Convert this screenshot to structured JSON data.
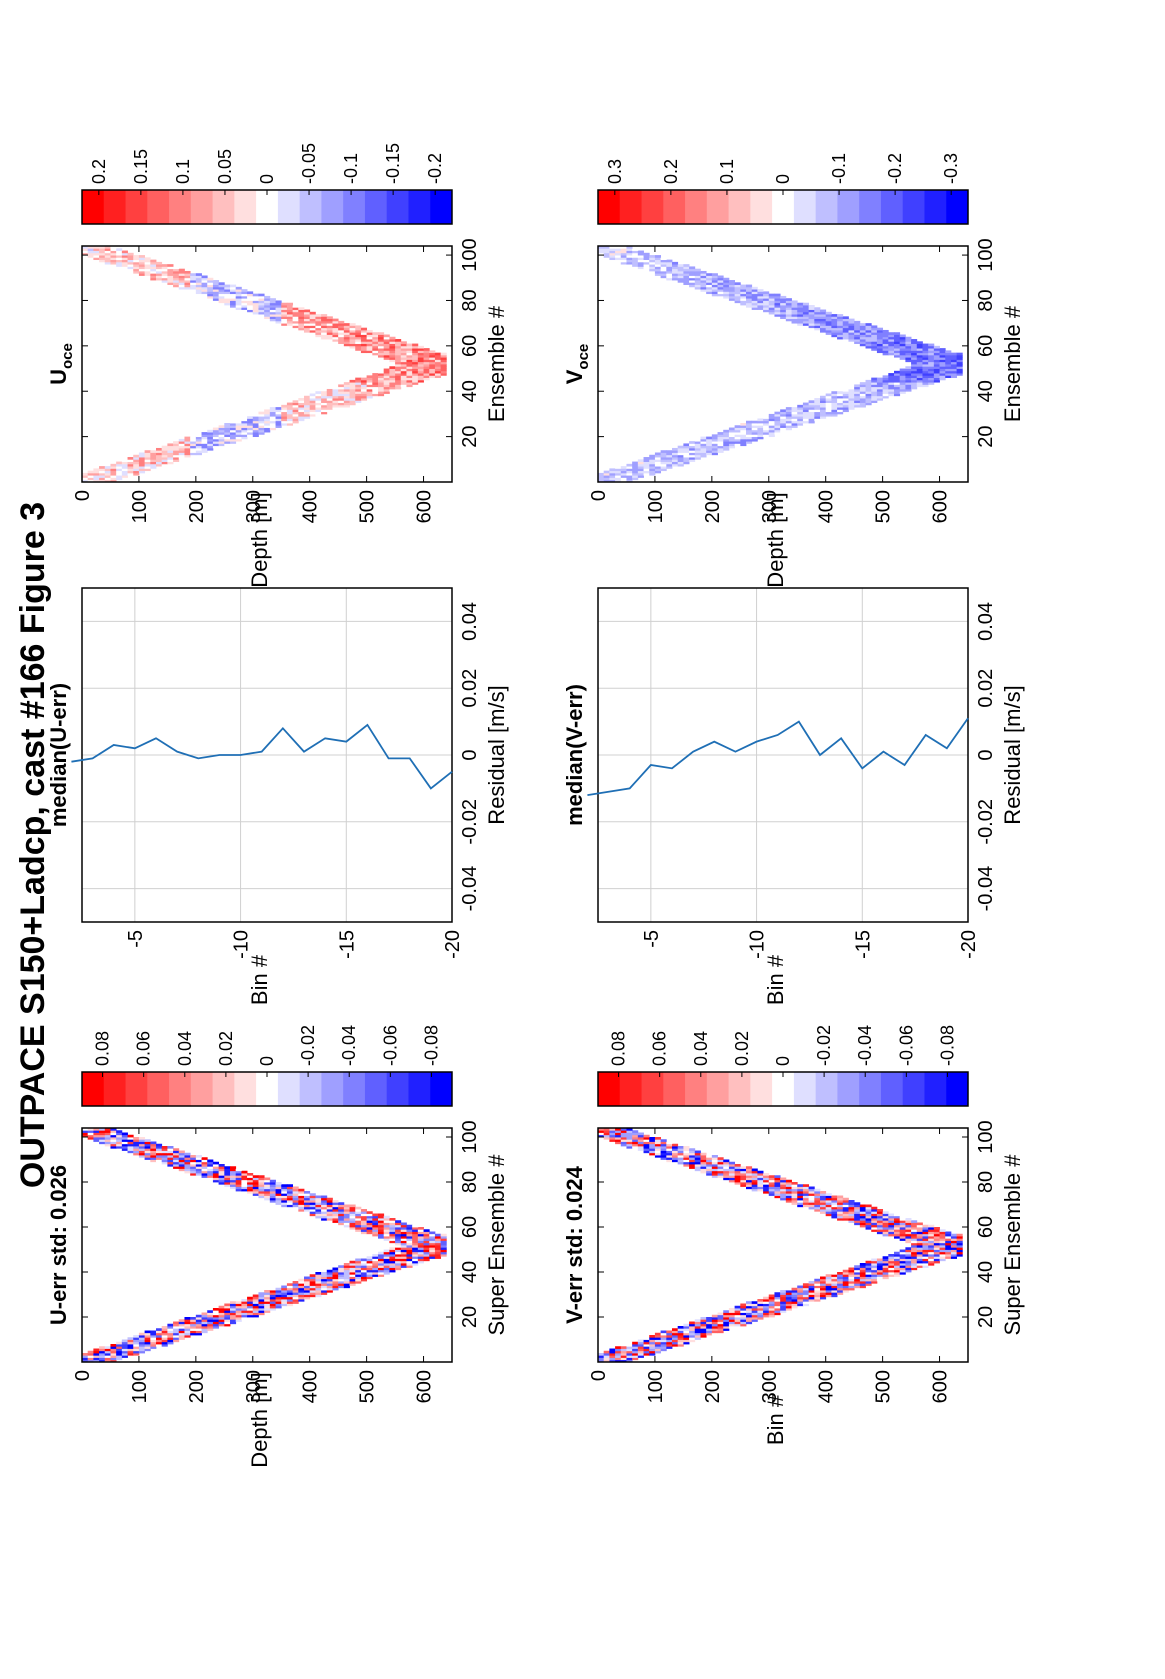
{
  "figure": {
    "title": "OUTPACE S150+Ladcp, cast #166  Figure 3"
  },
  "colors": {
    "red": "#ff0000",
    "blue": "#0000ff",
    "line": "#1f6fb5",
    "grid": "#d0d0d0"
  },
  "chart_data": [
    {
      "id": "u_err",
      "type": "heatmap",
      "title": "U-err std: 0.026",
      "xlabel": "Super Ensemble #",
      "ylabel": "Depth [m]",
      "xticks": [
        "20",
        "40",
        "60",
        "80",
        "100"
      ],
      "yticks": [
        "0",
        "100",
        "200",
        "300",
        "400",
        "500",
        "600"
      ],
      "xlim": [
        0,
        104
      ],
      "ylim": [
        0,
        650
      ],
      "colorbar": {
        "range": [
          -0.09,
          0.09
        ],
        "ticks": [
          "0.08",
          "0.06",
          "0.04",
          "0.02",
          "0",
          "-0.02",
          "-0.04",
          "-0.06",
          "-0.08"
        ]
      },
      "seed": 11,
      "bias": 0,
      "noise": 1.0
    },
    {
      "id": "u_median",
      "type": "line",
      "title": "median(U-err)",
      "xlabel": "Residual [m/s]",
      "ylabel": "Bin #",
      "xticks": [
        "-0.04",
        "-0.02",
        "0",
        "0.02",
        "0.04"
      ],
      "yticks": [
        "-5",
        "-10",
        "-15",
        "-20"
      ],
      "xlim": [
        -0.05,
        0.05
      ],
      "ylim": [
        -20,
        -2.5
      ],
      "x": [
        -0.002,
        -0.001,
        0.003,
        0.002,
        0.005,
        0.001,
        -0.001,
        0.0,
        0.0,
        0.001,
        0.008,
        0.001,
        0.005,
        0.004,
        0.009,
        -0.001,
        -0.001,
        -0.01,
        -0.005
      ],
      "y": [
        -2,
        -3,
        -4,
        -5,
        -6,
        -7,
        -8,
        -9,
        -10,
        -11,
        -12,
        -13,
        -14,
        -15,
        -16,
        -17,
        -18,
        -19,
        -20
      ]
    },
    {
      "id": "u_oce",
      "type": "heatmap",
      "title": "U",
      "title_sub": "oce",
      "xlabel": "Ensemble #",
      "ylabel": "Depth [m]",
      "xticks": [
        "20",
        "40",
        "60",
        "80",
        "100"
      ],
      "yticks": [
        "0",
        "100",
        "200",
        "300",
        "400",
        "500",
        "600"
      ],
      "xlim": [
        0,
        104
      ],
      "ylim": [
        0,
        650
      ],
      "colorbar": {
        "range": [
          -0.22,
          0.22
        ],
        "ticks": [
          "0.2",
          "0.15",
          "0.1",
          "0.05",
          "0",
          "-0.05",
          "-0.1",
          "-0.15",
          "-0.2"
        ]
      },
      "seed": 23,
      "bias": 0.08,
      "noise": 0.35
    },
    {
      "id": "v_err",
      "type": "heatmap",
      "title": "V-err std: 0.024",
      "xlabel": "Super Ensemble #",
      "ylabel": "Bin #",
      "xticks": [
        "20",
        "40",
        "60",
        "80",
        "100"
      ],
      "yticks": [
        "0",
        "100",
        "200",
        "300",
        "400",
        "500",
        "600"
      ],
      "xlim": [
        0,
        104
      ],
      "ylim": [
        0,
        650
      ],
      "colorbar": {
        "range": [
          -0.09,
          0.09
        ],
        "ticks": [
          "0.08",
          "0.06",
          "0.04",
          "0.02",
          "0",
          "-0.02",
          "-0.04",
          "-0.06",
          "-0.08"
        ]
      },
      "seed": 37,
      "bias": 0,
      "noise": 1.0
    },
    {
      "id": "v_median",
      "type": "line",
      "title": "median(V-err)",
      "xlabel": "Residual [m/s]",
      "ylabel": "Bin #",
      "xticks": [
        "-0.04",
        "-0.02",
        "0",
        "0.02",
        "0.04"
      ],
      "yticks": [
        "-5",
        "-10",
        "-15",
        "-20"
      ],
      "xlim": [
        -0.05,
        0.05
      ],
      "ylim": [
        -20,
        -2.5
      ],
      "x": [
        -0.012,
        -0.011,
        -0.01,
        -0.003,
        -0.004,
        0.001,
        0.004,
        0.001,
        0.004,
        0.006,
        0.01,
        0.0,
        0.005,
        -0.004,
        0.001,
        -0.003,
        0.006,
        0.002,
        0.011
      ],
      "y": [
        -2,
        -3,
        -4,
        -5,
        -6,
        -7,
        -8,
        -9,
        -10,
        -11,
        -12,
        -13,
        -14,
        -15,
        -16,
        -17,
        -18,
        -19,
        -20
      ]
    },
    {
      "id": "v_oce",
      "type": "heatmap",
      "title": "V",
      "title_sub": "oce",
      "xlabel": "Ensemble #",
      "ylabel": "Depth [m]",
      "xticks": [
        "20",
        "40",
        "60",
        "80",
        "100"
      ],
      "yticks": [
        "0",
        "100",
        "200",
        "300",
        "400",
        "500",
        "600"
      ],
      "xlim": [
        0,
        104
      ],
      "ylim": [
        0,
        650
      ],
      "colorbar": {
        "range": [
          -0.33,
          0.33
        ],
        "ticks": [
          "0.3",
          "0.2",
          "0.1",
          "0",
          "-0.1",
          "-0.2",
          "-0.3"
        ]
      },
      "seed": 53,
      "bias": -0.15,
      "noise": 0.25
    }
  ]
}
